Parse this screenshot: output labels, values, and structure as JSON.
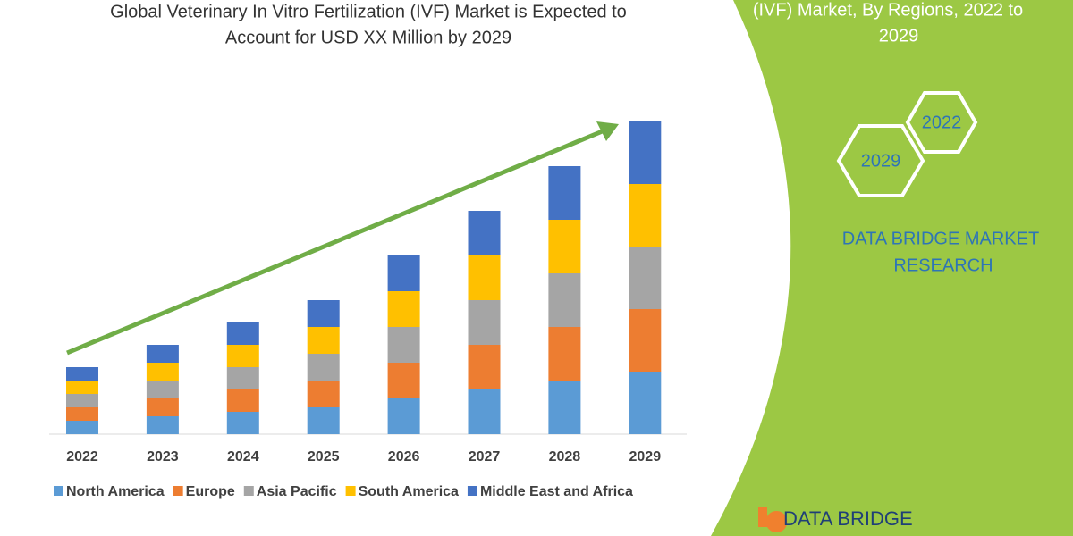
{
  "chart_data": {
    "type": "bar",
    "stacked": true,
    "title": [
      "Global Veterinary In Vitro Fertilization (IVF) Market is Expected to",
      "Account for USD XX Million by 2029"
    ],
    "categories": [
      "2022",
      "2023",
      "2024",
      "2025",
      "2026",
      "2027",
      "2028",
      "2029"
    ],
    "series": [
      {
        "name": "North America",
        "color": "#5b9bd5",
        "values": [
          15,
          20,
          25,
          30,
          40,
          50,
          60,
          70
        ]
      },
      {
        "name": "Europe",
        "color": "#ed7d31",
        "values": [
          15,
          20,
          25,
          30,
          40,
          50,
          60,
          70
        ]
      },
      {
        "name": "Asia Pacific",
        "color": "#a5a5a5",
        "values": [
          15,
          20,
          25,
          30,
          40,
          50,
          60,
          70
        ]
      },
      {
        "name": "South America",
        "color": "#ffc000",
        "values": [
          15,
          20,
          25,
          30,
          40,
          50,
          60,
          70
        ]
      },
      {
        "name": "Middle East and Africa",
        "color": "#4472c4",
        "values": [
          15,
          20,
          25,
          30,
          40,
          50,
          60,
          70
        ]
      }
    ]
  },
  "panel": {
    "heading": [
      "(IVF) Market, By Regions, 2022 to",
      "2029"
    ],
    "hex_labels": [
      "2022",
      "2029"
    ],
    "brand": [
      "DATA BRIDGE MARKET",
      "RESEARCH"
    ]
  },
  "logo": "DATA BRIDGE"
}
